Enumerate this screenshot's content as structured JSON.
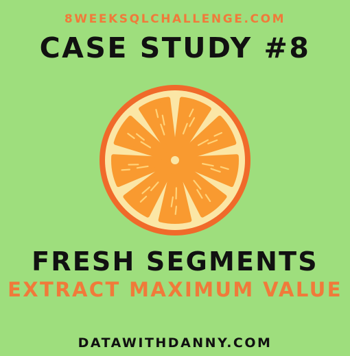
{
  "header": {
    "site": "8WEEKSQLCHALLENGE.COM",
    "title": "CASE STUDY #8"
  },
  "illustration": {
    "icon": "orange-slice-icon",
    "colors": {
      "rind": "#f06a2a",
      "pith": "#fbe6a6",
      "segment": "#f99a30",
      "vein": "#ffd37a",
      "center": "#fbe6a6"
    }
  },
  "study": {
    "name": "FRESH SEGMENTS",
    "tagline": "EXTRACT MAXIMUM VALUE"
  },
  "footer": {
    "site": "DATAWITHDANNY.COM"
  },
  "colors": {
    "background": "#9ede7d",
    "accent": "#f07a3a",
    "text": "#111111"
  }
}
